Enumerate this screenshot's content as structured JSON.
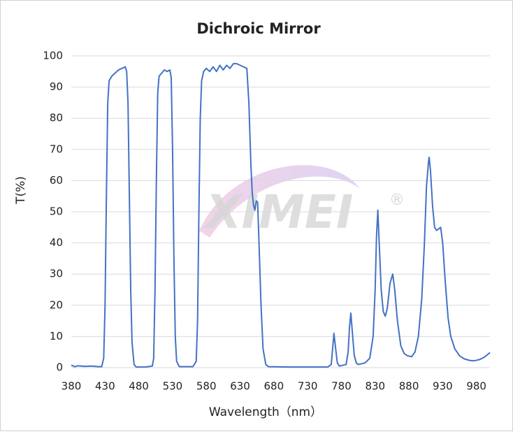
{
  "chart_data": {
    "type": "line",
    "title": "Dichroic Mirror",
    "xlabel": "Wavelength（nm）",
    "ylabel": "T(%)",
    "watermark": "XIMEI",
    "watermark_symbol": "®",
    "x": [
      380,
      385,
      390,
      400,
      410,
      420,
      425,
      428,
      430,
      432,
      434,
      436,
      440,
      445,
      450,
      455,
      460,
      462,
      464,
      466,
      468,
      470,
      473,
      476,
      490,
      500,
      502,
      504,
      506,
      508,
      510,
      514,
      518,
      522,
      526,
      528,
      530,
      532,
      534,
      536,
      540,
      560,
      565,
      567,
      569,
      571,
      573,
      576,
      580,
      585,
      590,
      595,
      600,
      605,
      610,
      615,
      620,
      625,
      630,
      635,
      640,
      643,
      646,
      648,
      650,
      652,
      654,
      656,
      658,
      661,
      664,
      668,
      672,
      700,
      760,
      765,
      767,
      769,
      771,
      774,
      777,
      787,
      790,
      792,
      794,
      796,
      799,
      802,
      805,
      815,
      822,
      827,
      830,
      832,
      834,
      836,
      839,
      842,
      845,
      848,
      852,
      856,
      859,
      863,
      868,
      873,
      878,
      884,
      889,
      894,
      899,
      903,
      906,
      909,
      910,
      912,
      915,
      918,
      921,
      924,
      927,
      930,
      934,
      938,
      942,
      948,
      955,
      962,
      970,
      977,
      985,
      992,
      1000
    ],
    "series": [
      {
        "name": "T",
        "color": "#4472c4",
        "values": [
          0.8,
          0.3,
          0.6,
          0.4,
          0.5,
          0.3,
          0.3,
          3,
          20,
          55,
          85,
          92,
          93.5,
          94.5,
          95.5,
          96,
          96.5,
          95,
          85,
          55,
          25,
          8,
          1,
          0.2,
          0.2,
          0.5,
          3,
          25,
          60,
          88,
          93.5,
          94.5,
          95.5,
          95,
          95.5,
          93,
          70,
          35,
          10,
          2,
          0.3,
          0.3,
          2,
          15,
          50,
          80,
          92,
          95,
          96,
          95,
          96.5,
          95,
          97,
          95.5,
          97,
          96,
          97.5,
          97.5,
          97,
          96.5,
          96,
          85,
          65,
          56,
          52,
          50.5,
          53.5,
          53,
          40,
          20,
          6,
          1,
          0.3,
          0.2,
          0.2,
          1,
          6,
          11,
          7,
          1.5,
          0.5,
          1,
          5,
          13,
          17.5,
          12,
          4,
          1.5,
          1,
          1.5,
          3,
          10,
          25,
          42,
          50.5,
          40,
          25,
          18,
          16.5,
          19,
          27,
          30,
          25,
          15,
          7,
          4.5,
          3.8,
          3.5,
          5,
          10,
          22,
          40,
          58,
          66,
          67.5,
          63,
          52,
          45,
          44,
          44.5,
          45,
          40,
          27,
          16,
          10,
          6,
          3.8,
          2.8,
          2.3,
          2.2,
          2.6,
          3.4,
          4.8
        ]
      }
    ],
    "xlim": [
      380,
      1000
    ],
    "xticks": [
      380,
      430,
      480,
      530,
      580,
      630,
      680,
      730,
      780,
      830,
      880,
      930,
      980
    ],
    "ylim": [
      0,
      100
    ],
    "yticks": [
      0,
      10,
      20,
      30,
      40,
      50,
      60,
      70,
      80,
      90,
      100
    ],
    "grid": true
  }
}
